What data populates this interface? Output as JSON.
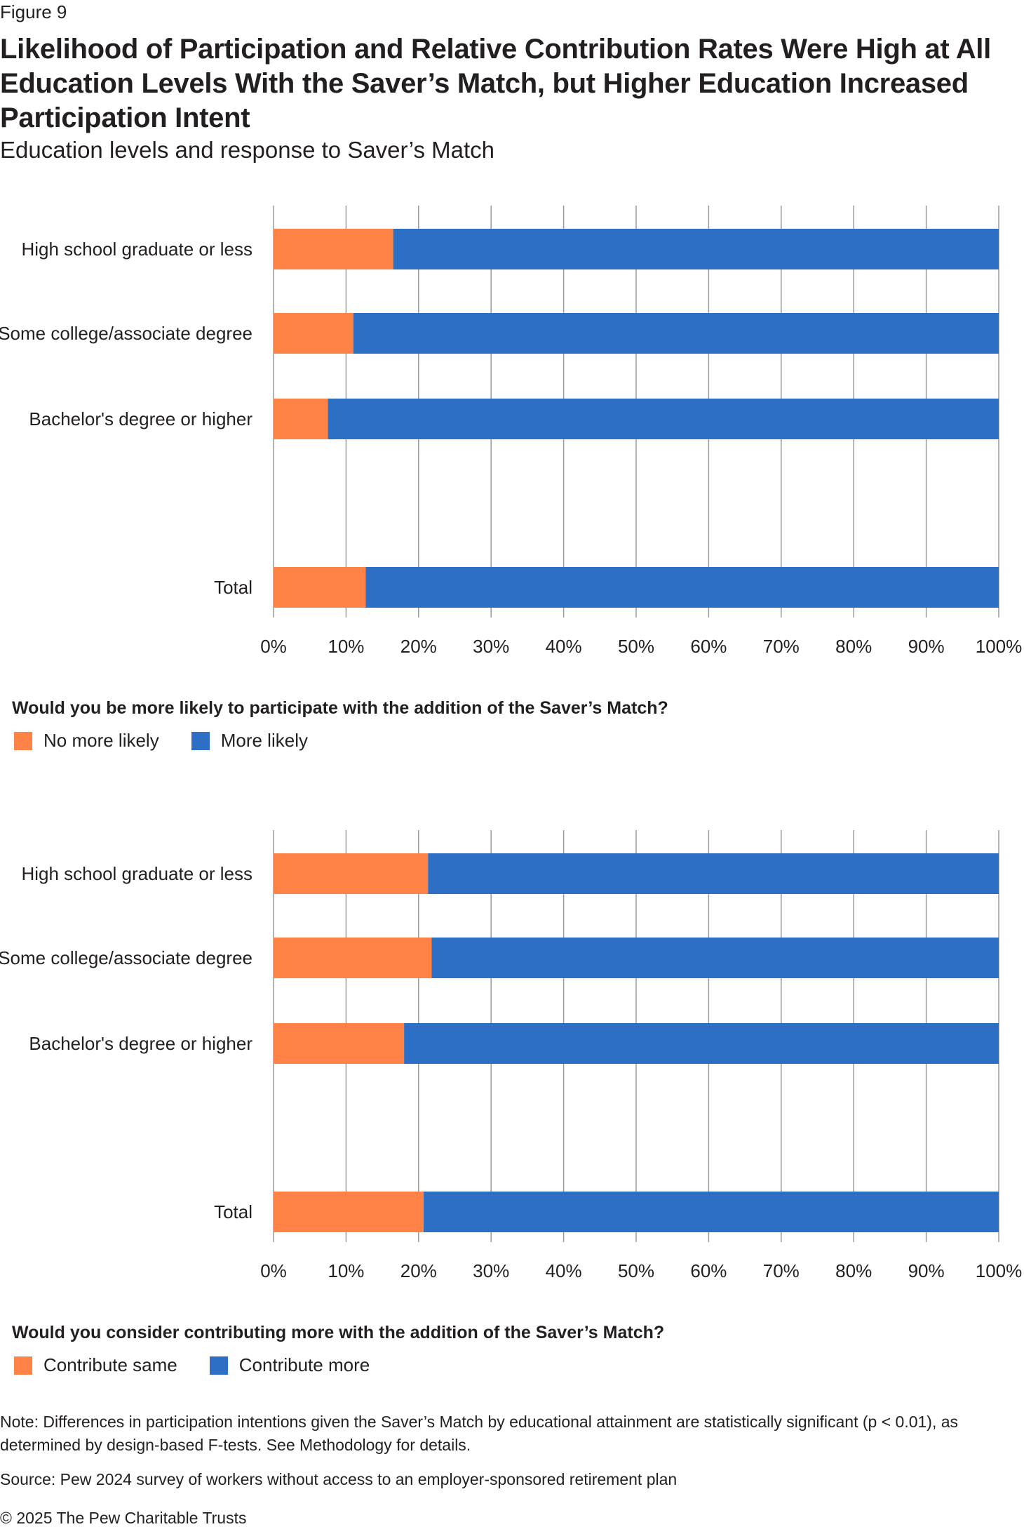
{
  "figure_label": "Figure 9",
  "title": "Likelihood of Participation and Relative Contribution Rates Were High at All Education Levels With the Saver’s Match, but Higher Education Increased Participation Intent",
  "subtitle": "Education levels and response to Saver’s Match",
  "colors": {
    "orange": "#ff8247",
    "blue": "#2c6fc4",
    "grid": "#9a9a9a"
  },
  "chart_data": [
    {
      "type": "bar",
      "orientation": "horizontal",
      "stacked": true,
      "categories": [
        "High school graduate or less",
        "Some college/associate degree",
        "Bachelor's degree or higher",
        "Total"
      ],
      "series": [
        {
          "name": "No more likely",
          "color": "#ff8247",
          "values": [
            16.5,
            11,
            7.5,
            12.7
          ]
        },
        {
          "name": "More likely",
          "color": "#2c6fc4",
          "values": [
            83.5,
            89,
            92.5,
            87.3
          ]
        }
      ],
      "xlim": [
        0,
        100
      ],
      "xticks": [
        "0%",
        "10%",
        "20%",
        "30%",
        "40%",
        "50%",
        "60%",
        "70%",
        "80%",
        "90%",
        "100%"
      ],
      "grid": true,
      "legend_title": "Would you be more likely to participate with the addition of the Saver’s Match?",
      "legend_position": "bottom-left"
    },
    {
      "type": "bar",
      "orientation": "horizontal",
      "stacked": true,
      "categories": [
        "High school graduate or less",
        "Some college/associate degree",
        "Bachelor's degree or higher",
        "Total"
      ],
      "series": [
        {
          "name": "Contribute same",
          "color": "#ff8247",
          "values": [
            21.3,
            21.8,
            18,
            20.7
          ]
        },
        {
          "name": "Contribute more",
          "color": "#2c6fc4",
          "values": [
            78.7,
            78.2,
            82,
            79.3
          ]
        }
      ],
      "xlim": [
        0,
        100
      ],
      "xticks": [
        "0%",
        "10%",
        "20%",
        "30%",
        "40%",
        "50%",
        "60%",
        "70%",
        "80%",
        "90%",
        "100%"
      ],
      "grid": true,
      "legend_title": "Would you consider contributing more with the addition of the Saver’s Match?",
      "legend_position": "bottom-left"
    }
  ],
  "note": "Note: Differences in participation intentions given the Saver’s Match by educational attainment are statistically significant (p < 0.01), as determined by design-based F-tests. See Methodology for details.",
  "source": "Source: Pew 2024 survey of workers without access to an employer-sponsored retirement plan",
  "copyright": "© 2025 The Pew Charitable Trusts"
}
